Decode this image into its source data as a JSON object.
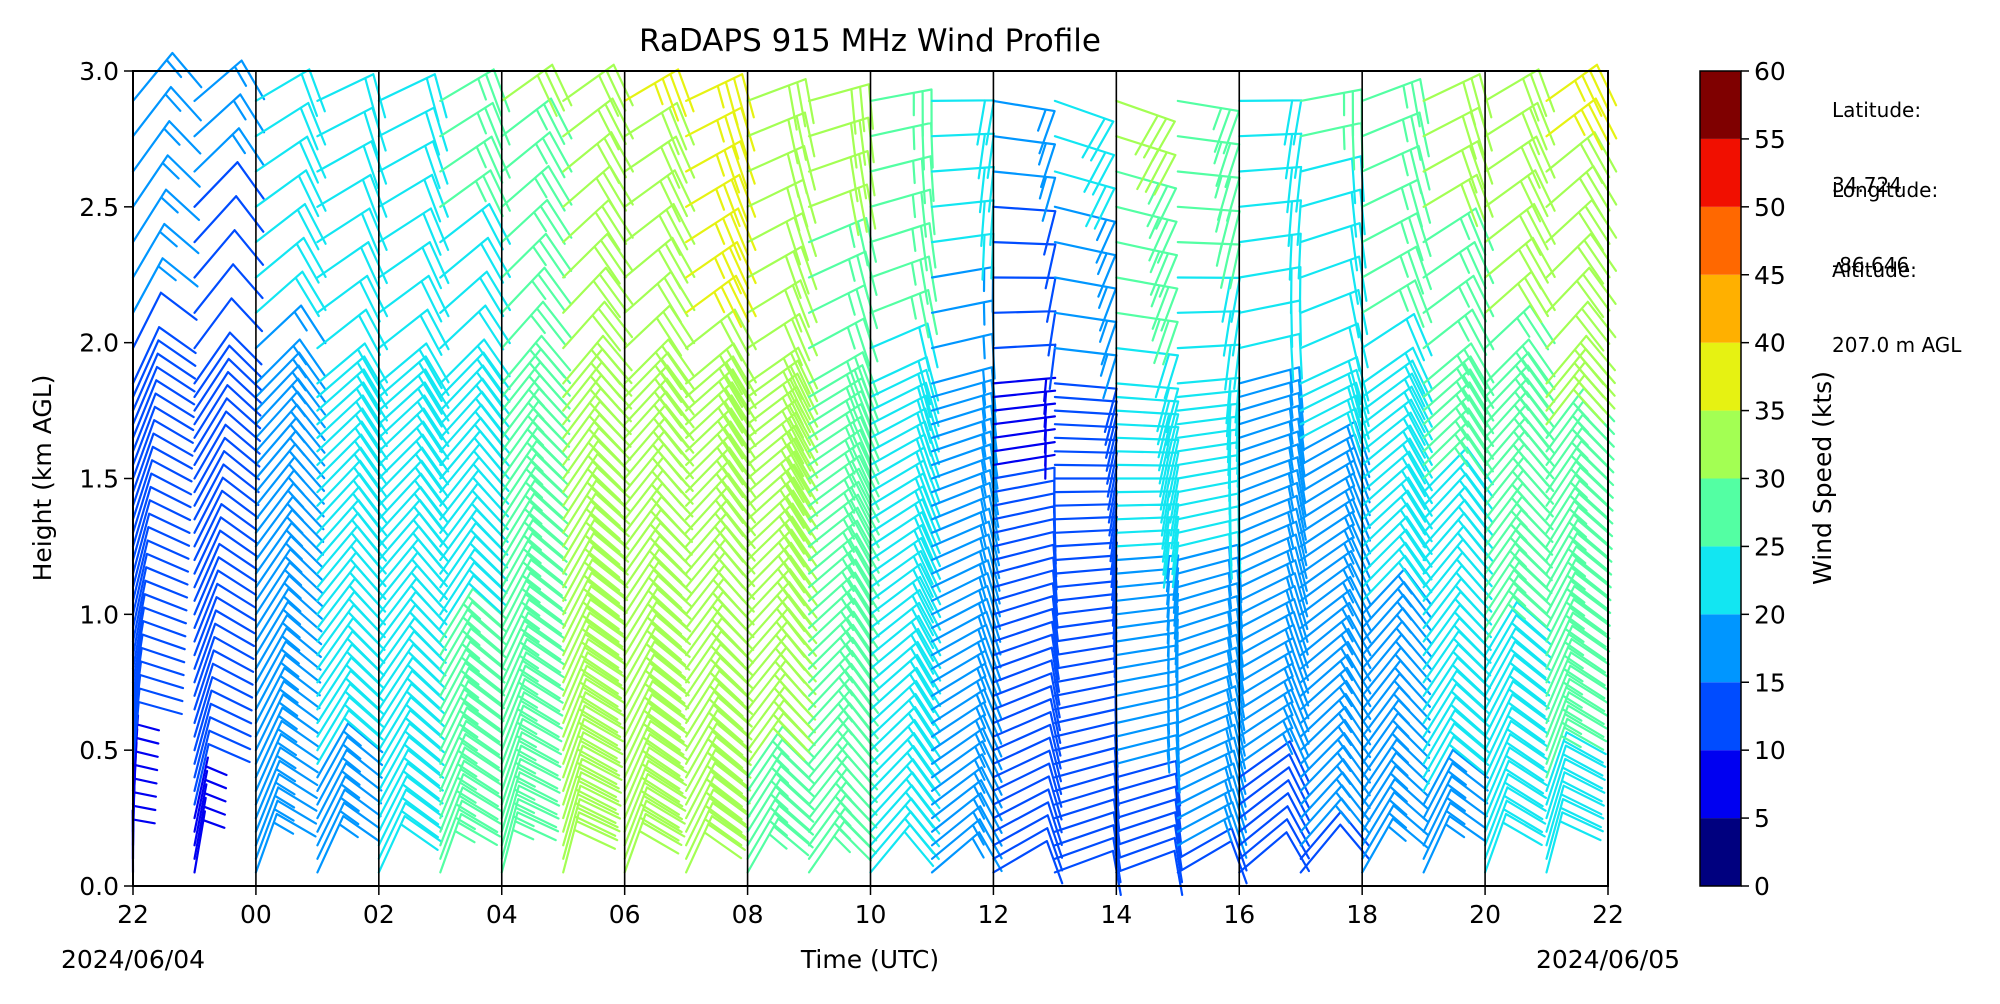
{
  "chart_data": {
    "type": "wind_barbs",
    "title": "RaDAPS 915 MHz Wind Profile",
    "xlabel": "Time (UTC)",
    "ylabel": "Height (km AGL)",
    "x_start": "2024-06-04T22:00Z",
    "x_end": "2024-06-05T22:00Z",
    "xlim_hours_utc": [
      22,
      46
    ],
    "x_tick_labels": [
      "22",
      "00",
      "02",
      "04",
      "06",
      "08",
      "10",
      "12",
      "14",
      "16",
      "18",
      "20",
      "22"
    ],
    "x_date_left": "2024/06/04",
    "x_date_right": "2024/06/05",
    "ylim": [
      0.0,
      3.0
    ],
    "y_tick_labels": [
      "0.0",
      "0.5",
      "1.0",
      "1.5",
      "2.0",
      "2.5",
      "3.0"
    ],
    "y_ticks": [
      0.0,
      0.5,
      1.0,
      1.5,
      2.0,
      2.5,
      3.0
    ],
    "gate_heights_km_low": {
      "start": 0.05,
      "end": 1.8,
      "step": 0.05
    },
    "gate_heights_km_high": {
      "start": 1.85,
      "end": 2.95,
      "step": 0.13
    },
    "profiles": [
      {
        "time": "22:00",
        "speed_low": 6,
        "speed_high": 12,
        "speed_top": 15,
        "dir": 200
      },
      {
        "time": "23:00",
        "speed_low": 7,
        "speed_high": 10,
        "speed_top": 14,
        "dir": 210
      },
      {
        "time": "00:00",
        "speed_low": 14,
        "speed_high": 17,
        "speed_top": 20,
        "dir": 220
      },
      {
        "time": "01:00",
        "speed_low": 17,
        "speed_high": 19,
        "speed_top": 21,
        "dir": 225
      },
      {
        "time": "02:00",
        "speed_low": 20,
        "speed_high": 19,
        "speed_top": 22,
        "dir": 225
      },
      {
        "time": "03:00",
        "speed_low": 24,
        "speed_high": 21,
        "speed_top": 24,
        "dir": 220
      },
      {
        "time": "04:00",
        "speed_low": 27,
        "speed_high": 25,
        "speed_top": 28,
        "dir": 215
      },
      {
        "time": "05:00",
        "speed_low": 29,
        "speed_high": 28,
        "speed_top": 31,
        "dir": 215
      },
      {
        "time": "06:00",
        "speed_low": 28,
        "speed_high": 30,
        "speed_top": 33,
        "dir": 220
      },
      {
        "time": "07:00",
        "speed_low": 30,
        "speed_high": 32,
        "speed_top": 34,
        "dir": 225
      },
      {
        "time": "08:00",
        "speed_low": 27,
        "speed_high": 29,
        "speed_top": 31,
        "dir": 230
      },
      {
        "time": "09:00",
        "speed_low": 23,
        "speed_high": 26,
        "speed_top": 29,
        "dir": 235
      },
      {
        "time": "10:00",
        "speed_low": 19,
        "speed_high": 22,
        "speed_top": 25,
        "dir": 240
      },
      {
        "time": "11:00",
        "speed_low": 14,
        "speed_high": 15,
        "speed_top": 21,
        "dir": 250
      },
      {
        "time": "12:00",
        "speed_low": 10,
        "speed_high": 7,
        "speed_top": 15,
        "dir": 260
      },
      {
        "time": "13:00",
        "speed_low": 9,
        "speed_high": 11,
        "speed_top": 21,
        "dir": 270
      },
      {
        "time": "14:00",
        "speed_low": 10,
        "speed_high": 21,
        "speed_top": 30,
        "dir": 270
      },
      {
        "time": "15:00",
        "speed_low": 12,
        "speed_high": 20,
        "speed_top": 26,
        "dir": 260
      },
      {
        "time": "16:00",
        "speed_low": 11,
        "speed_high": 17,
        "speed_top": 23,
        "dir": 250
      },
      {
        "time": "17:00",
        "speed_low": 12,
        "speed_high": 18,
        "speed_top": 24,
        "dir": 240
      },
      {
        "time": "18:00",
        "speed_low": 13,
        "speed_high": 21,
        "speed_top": 28,
        "dir": 230
      },
      {
        "time": "19:00",
        "speed_low": 16,
        "speed_high": 24,
        "speed_top": 31,
        "dir": 225
      },
      {
        "time": "20:00",
        "speed_low": 19,
        "speed_high": 26,
        "speed_top": 33,
        "dir": 220
      },
      {
        "time": "21:00",
        "speed_low": 21,
        "speed_high": 28,
        "speed_top": 34,
        "dir": 215
      }
    ],
    "colorbar": {
      "label": "Wind Speed (kts)",
      "tick_labels": [
        "0",
        "5",
        "10",
        "15",
        "20",
        "25",
        "30",
        "35",
        "40",
        "45",
        "50",
        "55",
        "60"
      ],
      "boundaries": [
        0,
        5,
        10,
        15,
        20,
        25,
        30,
        35,
        40,
        45,
        50,
        55,
        60
      ],
      "colors": [
        "#00007f",
        "#0000f1",
        "#004cff",
        "#0096ff",
        "#12e6f2",
        "#53ffa3",
        "#a3ff53",
        "#e6f212",
        "#ffb000",
        "#ff6800",
        "#f10f00",
        "#7f0000"
      ]
    },
    "grid": "vertical lines at major x ticks",
    "legend": "none"
  },
  "site": {
    "lat_label": "Latitude:",
    "lat_value": "34.724",
    "lon_label": "Longitude:",
    "lon_value": "-86.646",
    "alt_label": "Altitude:",
    "alt_value": "207.0 m AGL"
  }
}
